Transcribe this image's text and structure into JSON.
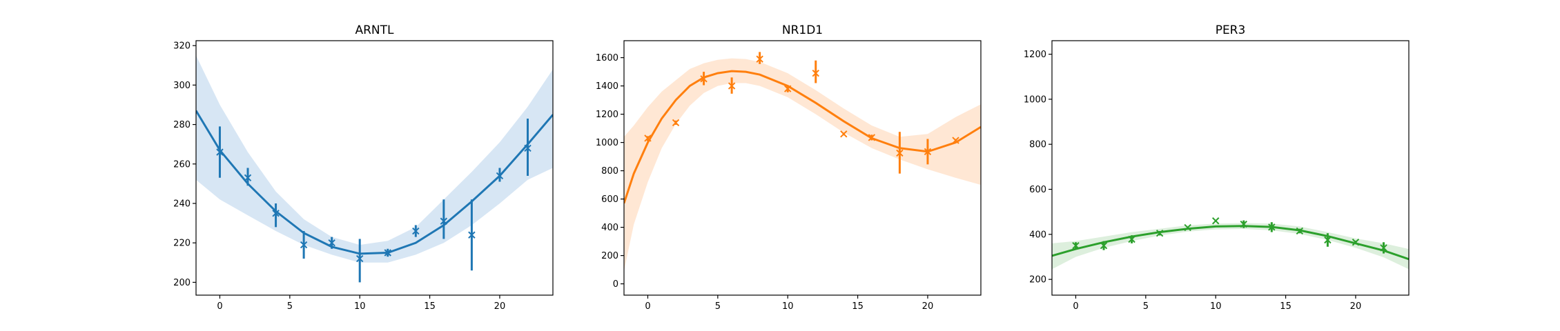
{
  "chart_data": [
    {
      "type": "scatter",
      "title": "ARNTL",
      "color": "#1f77b4",
      "fill": "#c6dbef",
      "xlim": [
        -1.7,
        23.8
      ],
      "ylim": [
        193.5,
        322.5
      ],
      "xticks": [
        0,
        5,
        10,
        15,
        20
      ],
      "yticks": [
        200,
        220,
        240,
        260,
        280,
        300,
        320
      ],
      "points": [
        {
          "x": 0,
          "y": 266
        },
        {
          "x": 2,
          "y": 253
        },
        {
          "x": 4,
          "y": 235
        },
        {
          "x": 6,
          "y": 219
        },
        {
          "x": 8,
          "y": 220
        },
        {
          "x": 10,
          "y": 212
        },
        {
          "x": 12,
          "y": 215
        },
        {
          "x": 14,
          "y": 226
        },
        {
          "x": 16,
          "y": 231
        },
        {
          "x": 18,
          "y": 224
        },
        {
          "x": 20,
          "y": 254
        },
        {
          "x": 22,
          "y": 268
        }
      ],
      "error_bars": [
        {
          "x": 0,
          "low": 253,
          "high": 279
        },
        {
          "x": 2,
          "low": 249,
          "high": 258
        },
        {
          "x": 4,
          "low": 228,
          "high": 240
        },
        {
          "x": 6,
          "low": 212,
          "high": 226
        },
        {
          "x": 8,
          "low": 217,
          "high": 223
        },
        {
          "x": 10,
          "low": 200,
          "high": 222
        },
        {
          "x": 12,
          "low": 213,
          "high": 217
        },
        {
          "x": 14,
          "low": 223,
          "high": 229
        },
        {
          "x": 16,
          "low": 222,
          "high": 242
        },
        {
          "x": 18,
          "low": 206,
          "high": 242
        },
        {
          "x": 20,
          "low": 251,
          "high": 258
        },
        {
          "x": 22,
          "low": 254,
          "high": 283
        }
      ],
      "fit": {
        "x": [
          -1.7,
          0,
          2,
          4,
          6,
          8,
          10,
          12,
          14,
          16,
          18,
          20,
          22,
          23.8
        ],
        "y": [
          287,
          267,
          250,
          236,
          225,
          218,
          214.5,
          215,
          220,
          229,
          241,
          254,
          270,
          285
        ],
        "low": [
          252,
          242,
          234,
          226,
          219,
          214,
          210,
          210,
          214,
          220,
          229,
          240,
          252,
          258
        ],
        "high": [
          315,
          290,
          266,
          246,
          232,
          223,
          219,
          221,
          228,
          242,
          256,
          271,
          289,
          308
        ]
      }
    },
    {
      "type": "scatter",
      "title": "NR1D1",
      "color": "#ff7f0e",
      "fill": "#ffddc2",
      "xlim": [
        -1.7,
        23.8
      ],
      "ylim": [
        -80,
        1720
      ],
      "xticks": [
        0,
        5,
        10,
        15,
        20
      ],
      "yticks": [
        0,
        200,
        400,
        600,
        800,
        1000,
        1200,
        1400,
        1600
      ],
      "points": [
        {
          "x": 0,
          "y": 1030
        },
        {
          "x": 2,
          "y": 1140
        },
        {
          "x": 4,
          "y": 1450
        },
        {
          "x": 6,
          "y": 1400
        },
        {
          "x": 8,
          "y": 1590
        },
        {
          "x": 10,
          "y": 1380
        },
        {
          "x": 12,
          "y": 1490
        },
        {
          "x": 14,
          "y": 1060
        },
        {
          "x": 16,
          "y": 1035
        },
        {
          "x": 18,
          "y": 925
        },
        {
          "x": 20,
          "y": 935
        },
        {
          "x": 22,
          "y": 1015
        }
      ],
      "error_bars": [
        {
          "x": 0,
          "low": 1010,
          "high": 1045
        },
        {
          "x": 2,
          "low": 1125,
          "high": 1155
        },
        {
          "x": 4,
          "low": 1405,
          "high": 1500
        },
        {
          "x": 6,
          "low": 1345,
          "high": 1460
        },
        {
          "x": 8,
          "low": 1555,
          "high": 1640
        },
        {
          "x": 10,
          "low": 1355,
          "high": 1405
        },
        {
          "x": 12,
          "low": 1420,
          "high": 1580
        },
        {
          "x": 14,
          "low": 1050,
          "high": 1070
        },
        {
          "x": 16,
          "low": 1015,
          "high": 1055
        },
        {
          "x": 18,
          "low": 780,
          "high": 1075
        },
        {
          "x": 20,
          "low": 845,
          "high": 1025
        },
        {
          "x": 22,
          "low": 1005,
          "high": 1025
        }
      ],
      "fit": {
        "x": [
          -1.7,
          -1,
          0,
          1,
          2,
          3,
          4,
          5,
          6,
          7,
          8,
          10,
          12,
          14,
          16,
          18,
          20,
          22,
          23.8
        ],
        "y": [
          570,
          780,
          1000,
          1170,
          1300,
          1400,
          1460,
          1490,
          1505,
          1500,
          1480,
          1400,
          1280,
          1150,
          1030,
          960,
          935,
          1000,
          1110
        ],
        "low": [
          90,
          420,
          720,
          960,
          1130,
          1260,
          1350,
          1400,
          1420,
          1420,
          1400,
          1320,
          1200,
          1070,
          960,
          880,
          810,
          750,
          700
        ],
        "high": [
          1040,
          1120,
          1250,
          1360,
          1440,
          1520,
          1560,
          1585,
          1595,
          1590,
          1570,
          1490,
          1370,
          1240,
          1120,
          1040,
          1060,
          1180,
          1270
        ]
      }
    },
    {
      "type": "scatter",
      "title": "PER3",
      "color": "#2ca02c",
      "fill": "#cfe8cf",
      "xlim": [
        -1.7,
        23.8
      ],
      "ylim": [
        130,
        1260
      ],
      "xticks": [
        0,
        5,
        10,
        15,
        20
      ],
      "yticks": [
        200,
        400,
        600,
        800,
        1000,
        1200
      ],
      "points": [
        {
          "x": 0,
          "y": 350
        },
        {
          "x": 2,
          "y": 350
        },
        {
          "x": 4,
          "y": 378
        },
        {
          "x": 6,
          "y": 405
        },
        {
          "x": 8,
          "y": 430
        },
        {
          "x": 10,
          "y": 460
        },
        {
          "x": 12,
          "y": 445
        },
        {
          "x": 14,
          "y": 432
        },
        {
          "x": 16,
          "y": 415
        },
        {
          "x": 18,
          "y": 375
        },
        {
          "x": 20,
          "y": 365
        },
        {
          "x": 22,
          "y": 340
        }
      ],
      "error_bars": [
        {
          "x": 0,
          "low": 335,
          "high": 365
        },
        {
          "x": 2,
          "low": 330,
          "high": 370
        },
        {
          "x": 4,
          "low": 360,
          "high": 396
        },
        {
          "x": 6,
          "low": 395,
          "high": 415
        },
        {
          "x": 8,
          "low": 425,
          "high": 435
        },
        {
          "x": 10,
          "low": 455,
          "high": 465
        },
        {
          "x": 12,
          "low": 428,
          "high": 462
        },
        {
          "x": 14,
          "low": 410,
          "high": 454
        },
        {
          "x": 16,
          "low": 405,
          "high": 425
        },
        {
          "x": 18,
          "low": 345,
          "high": 405
        },
        {
          "x": 20,
          "low": 358,
          "high": 372
        },
        {
          "x": 22,
          "low": 315,
          "high": 365
        }
      ],
      "fit": {
        "x": [
          -1.7,
          0,
          2,
          4,
          6,
          8,
          10,
          12,
          14,
          16,
          18,
          20,
          22,
          23.8
        ],
        "y": [
          305,
          335,
          365,
          390,
          410,
          425,
          435,
          437,
          433,
          418,
          392,
          360,
          328,
          290
        ],
        "low": [
          245,
          300,
          340,
          370,
          395,
          412,
          422,
          424,
          418,
          402,
          375,
          340,
          298,
          245
        ],
        "high": [
          360,
          370,
          390,
          410,
          425,
          440,
          448,
          450,
          448,
          435,
          410,
          382,
          360,
          335
        ]
      }
    }
  ]
}
